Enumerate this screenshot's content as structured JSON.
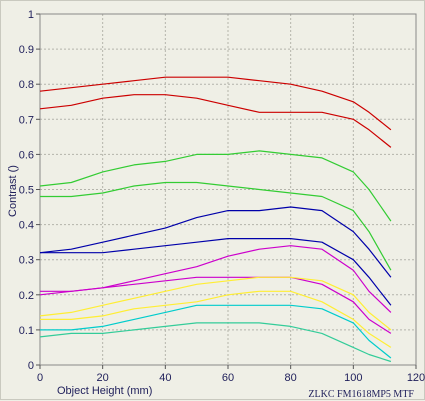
{
  "chart_data": {
    "type": "line",
    "title": "",
    "xlabel": "Object Height (mm)",
    "ylabel": "Contrast ()",
    "credit": "ZLKC FM1618MP5 MTF",
    "xlim": [
      0,
      120
    ],
    "ylim": [
      0,
      1
    ],
    "x_ticks": [
      "0",
      "20",
      "40",
      "60",
      "80",
      "100",
      "120"
    ],
    "y_ticks": [
      "0",
      "0.1",
      "0.2",
      "0.3",
      "0.4",
      "0.5",
      "0.6",
      "0.7",
      "0.8",
      "0.9",
      "1"
    ],
    "grid": true,
    "legend": "none",
    "x": [
      0,
      10,
      20,
      30,
      40,
      50,
      60,
      70,
      80,
      90,
      100,
      105,
      112
    ],
    "series": [
      {
        "color": "#cc0000",
        "values": [
          0.78,
          0.79,
          0.8,
          0.81,
          0.82,
          0.82,
          0.82,
          0.81,
          0.8,
          0.78,
          0.75,
          0.72,
          0.67
        ]
      },
      {
        "color": "#cc0000",
        "values": [
          0.73,
          0.74,
          0.76,
          0.77,
          0.77,
          0.76,
          0.74,
          0.72,
          0.72,
          0.72,
          0.7,
          0.67,
          0.62
        ]
      },
      {
        "color": "#33cc33",
        "values": [
          0.51,
          0.52,
          0.55,
          0.57,
          0.58,
          0.6,
          0.6,
          0.61,
          0.6,
          0.59,
          0.55,
          0.5,
          0.41
        ]
      },
      {
        "color": "#33cc33",
        "values": [
          0.48,
          0.48,
          0.49,
          0.51,
          0.52,
          0.52,
          0.51,
          0.5,
          0.49,
          0.48,
          0.44,
          0.38,
          0.27
        ]
      },
      {
        "color": "#0000aa",
        "values": [
          0.32,
          0.33,
          0.35,
          0.37,
          0.39,
          0.42,
          0.44,
          0.44,
          0.45,
          0.44,
          0.38,
          0.33,
          0.25
        ]
      },
      {
        "color": "#0000aa",
        "values": [
          0.32,
          0.32,
          0.32,
          0.33,
          0.34,
          0.35,
          0.36,
          0.36,
          0.36,
          0.35,
          0.3,
          0.25,
          0.17
        ]
      },
      {
        "color": "#cc00cc",
        "values": [
          0.21,
          0.21,
          0.22,
          0.24,
          0.26,
          0.28,
          0.31,
          0.33,
          0.34,
          0.33,
          0.27,
          0.21,
          0.15
        ]
      },
      {
        "color": "#cc00cc",
        "values": [
          0.2,
          0.21,
          0.22,
          0.23,
          0.24,
          0.25,
          0.25,
          0.25,
          0.25,
          0.23,
          0.18,
          0.13,
          0.09
        ]
      },
      {
        "color": "#ffee33",
        "values": [
          0.14,
          0.15,
          0.17,
          0.19,
          0.21,
          0.23,
          0.24,
          0.25,
          0.25,
          0.24,
          0.2,
          0.15,
          0.1
        ]
      },
      {
        "color": "#ffee33",
        "values": [
          0.13,
          0.13,
          0.14,
          0.16,
          0.17,
          0.18,
          0.2,
          0.21,
          0.21,
          0.18,
          0.13,
          0.09,
          0.05
        ]
      },
      {
        "color": "#00cccc",
        "values": [
          0.1,
          0.1,
          0.11,
          0.13,
          0.15,
          0.17,
          0.17,
          0.17,
          0.17,
          0.16,
          0.12,
          0.07,
          0.02
        ]
      },
      {
        "color": "#33cc99",
        "values": [
          0.08,
          0.09,
          0.09,
          0.1,
          0.11,
          0.12,
          0.12,
          0.12,
          0.11,
          0.09,
          0.05,
          0.03,
          0.01
        ]
      }
    ]
  }
}
